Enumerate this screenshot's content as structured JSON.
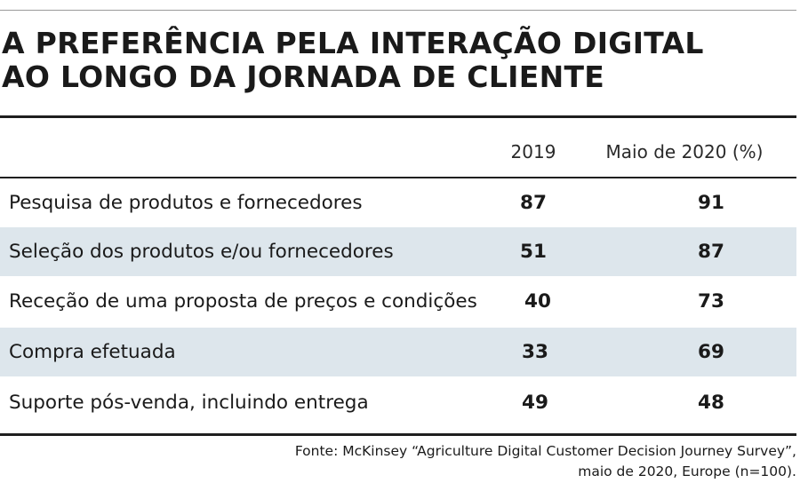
{
  "chart_data": {
    "type": "table",
    "title_lines": [
      "A PREFERÊNCIA PELA INTERAÇÃO DIGITAL",
      "AO LONGO DA JORNADA DE CLIENTE"
    ],
    "columns": [
      "2019",
      "Maio de 2020 (%)"
    ],
    "rows": [
      {
        "label": "Pesquisa de produtos e fornecedores",
        "values": [
          87,
          91
        ]
      },
      {
        "label": "Seleção dos produtos e/ou fornecedores",
        "values": [
          51,
          87
        ]
      },
      {
        "label": "Receção de uma proposta de preços e condições",
        "values": [
          40,
          73
        ]
      },
      {
        "label": "Compra efetuada",
        "values": [
          33,
          69
        ]
      },
      {
        "label": "Suporte pós-venda, incluindo entrega",
        "values": [
          49,
          48
        ]
      }
    ],
    "source_lines": [
      "Fonte: McKinsey “Agriculture Digital Customer Decision Journey Survey”,",
      "maio de 2020, Europe (n=100)."
    ]
  },
  "colors": {
    "row_shade": "#dde6ec",
    "rule": "#1f1f1f",
    "text": "#1a1a1a"
  }
}
